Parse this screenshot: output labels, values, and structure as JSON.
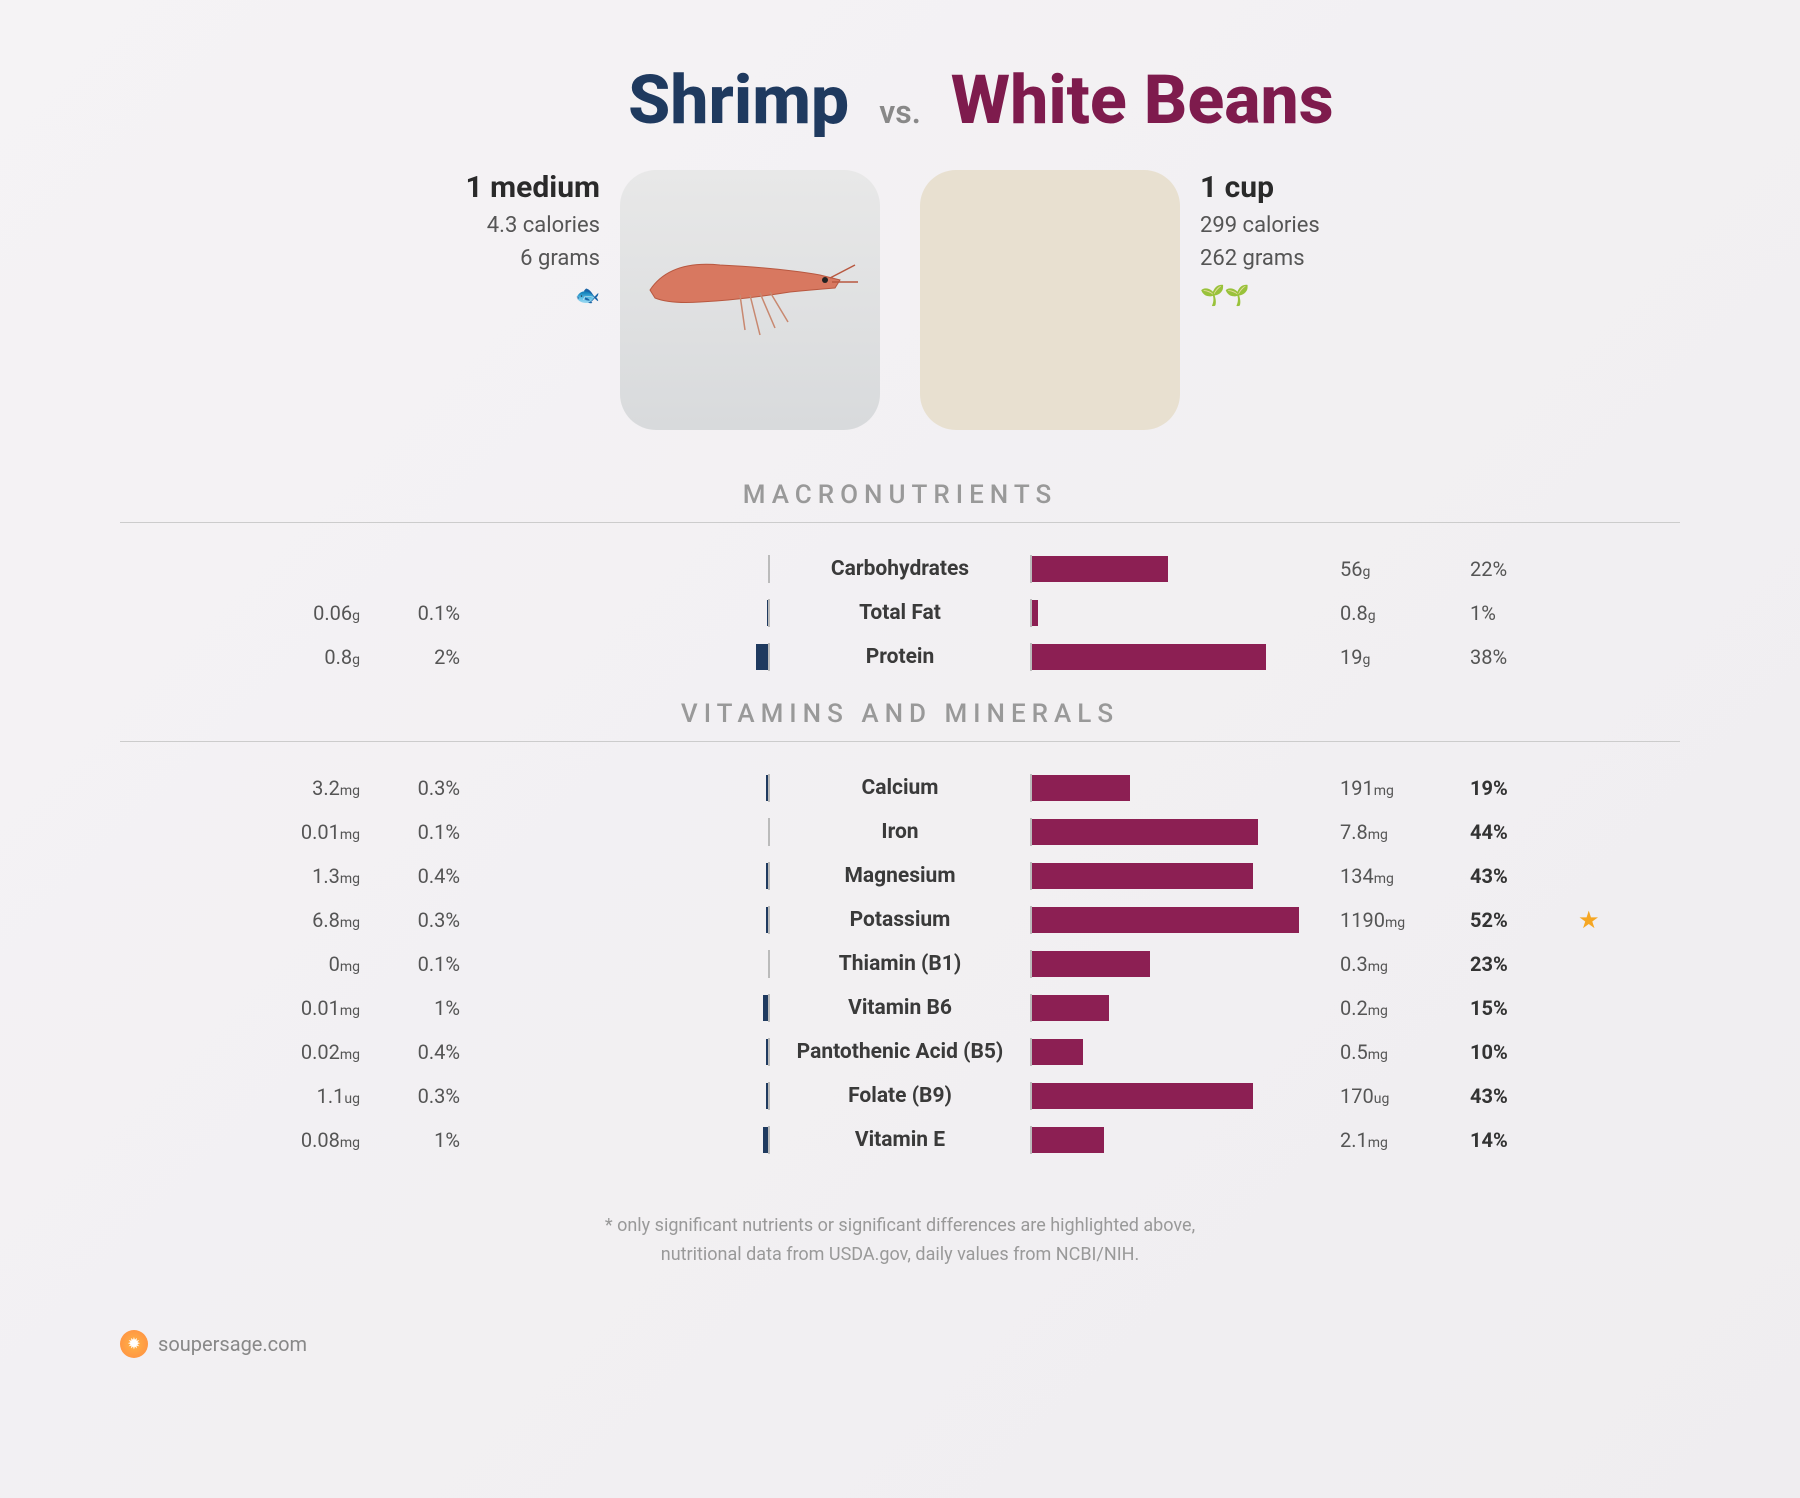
{
  "header": {
    "left": "Shrimp",
    "vs": "vs.",
    "right": "White Beans"
  },
  "colors": {
    "left_bar": "#1f3a5f",
    "right_bar": "#8c1f53",
    "star": "#f5a623"
  },
  "food_left": {
    "serving": "1 medium",
    "calories": "4.3 calories",
    "grams": "6 grams",
    "icon": "🐟"
  },
  "food_right": {
    "serving": "1 cup",
    "calories": "299 calories",
    "grams": "262 grams",
    "icon": "🌱🌱"
  },
  "sections": [
    {
      "title": "MACRONUTRIENTS",
      "max_pct": 50,
      "rows": [
        {
          "label": "Carbohydrates",
          "l_amt": "",
          "l_unit": "",
          "l_pct": "",
          "l_bar": 0,
          "r_amt": "56",
          "r_unit": "g",
          "r_pct": "22%",
          "r_bar": 22,
          "r_bold": false,
          "star": false
        },
        {
          "label": "Total Fat",
          "l_amt": "0.06",
          "l_unit": "g",
          "l_pct": "0.1%",
          "l_bar": 0.1,
          "r_amt": "0.8",
          "r_unit": "g",
          "r_pct": "1%",
          "r_bar": 1,
          "r_bold": false,
          "star": false
        },
        {
          "label": "Protein",
          "l_amt": "0.8",
          "l_unit": "g",
          "l_pct": "2%",
          "l_bar": 2,
          "r_amt": "19",
          "r_unit": "g",
          "r_pct": "38%",
          "r_bar": 38,
          "r_bold": false,
          "star": false
        }
      ]
    },
    {
      "title": "VITAMINS AND MINERALS",
      "max_pct": 60,
      "rows": [
        {
          "label": "Calcium",
          "l_amt": "3.2",
          "l_unit": "mg",
          "l_pct": "0.3%",
          "l_bar": 0.3,
          "r_amt": "191",
          "r_unit": "mg",
          "r_pct": "19%",
          "r_bar": 19,
          "r_bold": true,
          "star": false
        },
        {
          "label": "Iron",
          "l_amt": "0.01",
          "l_unit": "mg",
          "l_pct": "0.1%",
          "l_bar": 0.1,
          "r_amt": "7.8",
          "r_unit": "mg",
          "r_pct": "44%",
          "r_bar": 44,
          "r_bold": true,
          "star": false
        },
        {
          "label": "Magnesium",
          "l_amt": "1.3",
          "l_unit": "mg",
          "l_pct": "0.4%",
          "l_bar": 0.4,
          "r_amt": "134",
          "r_unit": "mg",
          "r_pct": "43%",
          "r_bar": 43,
          "r_bold": true,
          "star": false
        },
        {
          "label": "Potassium",
          "l_amt": "6.8",
          "l_unit": "mg",
          "l_pct": "0.3%",
          "l_bar": 0.3,
          "r_amt": "1190",
          "r_unit": "mg",
          "r_pct": "52%",
          "r_bar": 52,
          "r_bold": true,
          "star": true
        },
        {
          "label": "Thiamin (B1)",
          "l_amt": "0",
          "l_unit": "mg",
          "l_pct": "0.1%",
          "l_bar": 0.1,
          "r_amt": "0.3",
          "r_unit": "mg",
          "r_pct": "23%",
          "r_bar": 23,
          "r_bold": true,
          "star": false
        },
        {
          "label": "Vitamin B6",
          "l_amt": "0.01",
          "l_unit": "mg",
          "l_pct": "1%",
          "l_bar": 1,
          "r_amt": "0.2",
          "r_unit": "mg",
          "r_pct": "15%",
          "r_bar": 15,
          "r_bold": true,
          "star": false
        },
        {
          "label": "Pantothenic Acid (B5)",
          "l_amt": "0.02",
          "l_unit": "mg",
          "l_pct": "0.4%",
          "l_bar": 0.4,
          "r_amt": "0.5",
          "r_unit": "mg",
          "r_pct": "10%",
          "r_bar": 10,
          "r_bold": true,
          "star": false
        },
        {
          "label": "Folate (B9)",
          "l_amt": "1.1",
          "l_unit": "ug",
          "l_pct": "0.3%",
          "l_bar": 0.3,
          "r_amt": "170",
          "r_unit": "ug",
          "r_pct": "43%",
          "r_bar": 43,
          "r_bold": true,
          "star": false
        },
        {
          "label": "Vitamin E",
          "l_amt": "0.08",
          "l_unit": "mg",
          "l_pct": "1%",
          "l_bar": 1,
          "r_amt": "2.1",
          "r_unit": "mg",
          "r_pct": "14%",
          "r_bar": 14,
          "r_bold": true,
          "star": false
        }
      ]
    }
  ],
  "footnote_line1": "* only significant nutrients or significant differences are highlighted above,",
  "footnote_line2": "nutritional data from USDA.gov, daily values from NCBI/NIH.",
  "logo_text": "soupersage.com"
}
